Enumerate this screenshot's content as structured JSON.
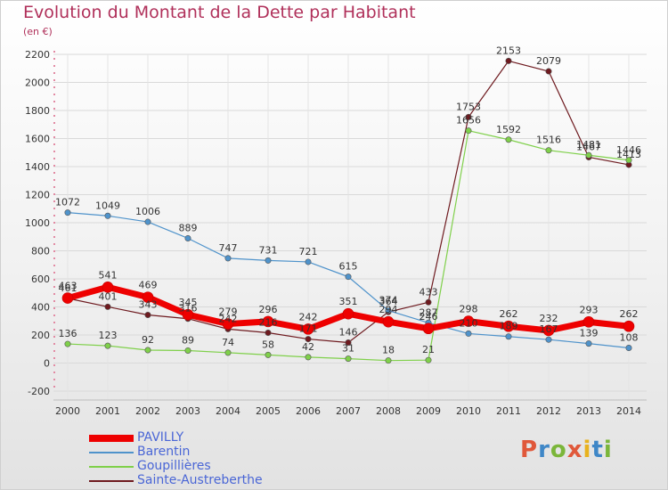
{
  "title": "Evolution du Montant de la Dette par Habitant",
  "subtitle": "(en €)",
  "logo": "Proxiti",
  "chart_data": {
    "type": "line",
    "title": "Evolution du Montant de la Dette par Habitant",
    "unit": "(en €)",
    "x": [
      2000,
      2001,
      2002,
      2003,
      2004,
      2005,
      2006,
      2007,
      2008,
      2009,
      2010,
      2011,
      2012,
      2013,
      2014
    ],
    "ylim": [
      -200,
      2200
    ],
    "yticks": [
      -200,
      0,
      200,
      400,
      600,
      800,
      1000,
      1200,
      1400,
      1600,
      1800,
      2000,
      2200
    ],
    "grid": true,
    "legend_position": "bottom-left",
    "series": [
      {
        "name": "PAVILLY",
        "color": "#ee0000",
        "values": [
          463,
          541,
          469,
          345,
          279,
          296,
          242,
          351,
          294,
          246,
          298,
          262,
          232,
          293,
          262
        ]
      },
      {
        "name": "Barentin",
        "color": "#4f93cb",
        "values": [
          1072,
          1049,
          1006,
          889,
          747,
          731,
          721,
          615,
          374,
          287,
          210,
          189,
          167,
          139,
          108
        ]
      },
      {
        "name": "Goupillières",
        "color": "#7fd04a",
        "values": [
          136,
          123,
          92,
          89,
          74,
          58,
          42,
          31,
          18,
          21,
          1656,
          1592,
          1516,
          1481,
          1446
        ]
      },
      {
        "name": "Sainte-Austreberthe",
        "color": "#6e1a1f",
        "values": [
          461,
          401,
          343,
          316,
          242,
          216,
          171,
          146,
          364,
          433,
          1753,
          2153,
          2079,
          1467,
          1413
        ]
      }
    ]
  }
}
